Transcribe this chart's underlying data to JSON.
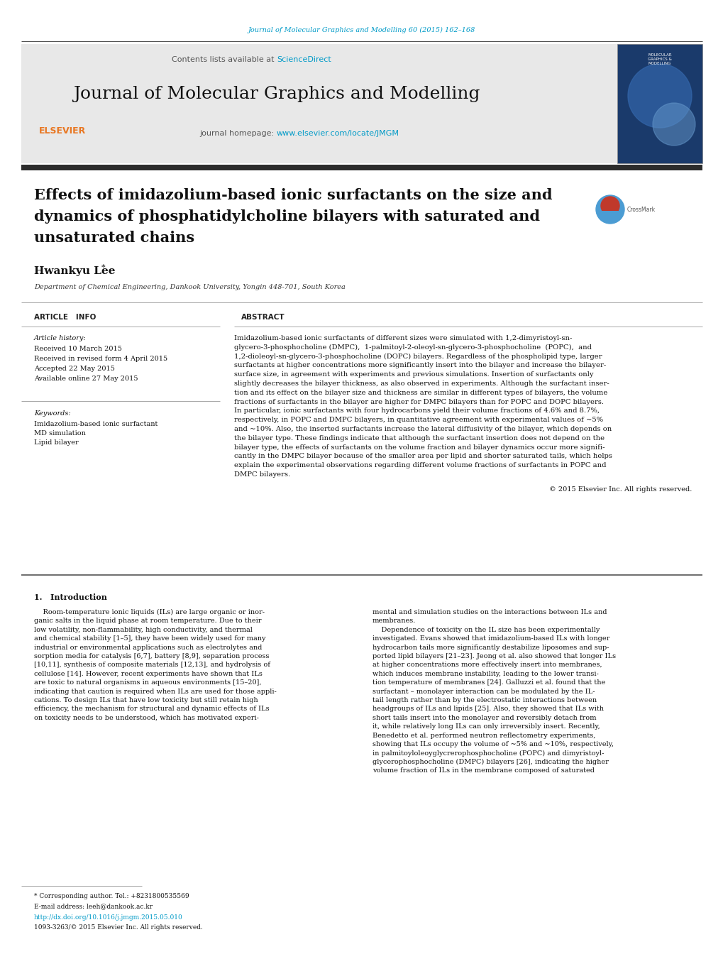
{
  "page_width": 10.2,
  "page_height": 13.51,
  "dpi": 100,
  "bg_color": "#ffffff",
  "header_journal_text": "Journal of Molecular Graphics and Modelling 60 (2015) 162–168",
  "header_journal_color": "#009ac7",
  "journal_name": "Journal of Molecular Graphics and Modelling",
  "contents_text": "Contents lists available at ",
  "sciencedirect_text": "ScienceDirect",
  "sciencedirect_color": "#009ac7",
  "journal_homepage_label": "journal homepage: ",
  "journal_url": "www.elsevier.com/locate/JMGM",
  "journal_url_color": "#009ac7",
  "header_bg_color": "#e8e8e8",
  "dark_bar_color": "#2c2c2c",
  "article_title_line1": "Effects of imidazolium-based ionic surfactants on the size and",
  "article_title_line2": "dynamics of phosphatidylcholine bilayers with saturated and",
  "article_title_line3": "unsaturated chains",
  "author_name": "Hwankyu Lee",
  "affiliation_text": "Department of Chemical Engineering, Dankook University, Yongin 448-701, South Korea",
  "article_info_label": "ARTICLE   INFO",
  "abstract_label": "ABSTRACT",
  "article_history_label": "Article history:",
  "history_entries": [
    "Received 10 March 2015",
    "Received in revised form 4 April 2015",
    "Accepted 22 May 2015",
    "Available online 27 May 2015"
  ],
  "keywords_label": "Keywords:",
  "keywords": [
    "Imidazolium-based ionic surfactant",
    "MD simulation",
    "Lipid bilayer"
  ],
  "abstract_lines": [
    "Imidazolium-based ionic surfactants of different sizes were simulated with 1,2-dimyristoyl-sn-",
    "glycero-3-phosphocholine (DMPC),  1-palmitoyl-2-oleoyl-sn-glycero-3-phosphocholine  (POPC),  and",
    "1,2-dioleoyl-sn-glycero-3-phosphocholine (DOPC) bilayers. Regardless of the phospholipid type, larger",
    "surfactants at higher concentrations more significantly insert into the bilayer and increase the bilayer-",
    "surface size, in agreement with experiments and previous simulations. Insertion of surfactants only",
    "slightly decreases the bilayer thickness, as also observed in experiments. Although the surfactant inser-",
    "tion and its effect on the bilayer size and thickness are similar in different types of bilayers, the volume",
    "fractions of surfactants in the bilayer are higher for DMPC bilayers than for POPC and DOPC bilayers.",
    "In particular, ionic surfactants with four hydrocarbons yield their volume fractions of 4.6% and 8.7%,",
    "respectively, in POPC and DMPC bilayers, in quantitative agreement with experimental values of ~5%",
    "and ~10%. Also, the inserted surfactants increase the lateral diffusivity of the bilayer, which depends on",
    "the bilayer type. These findings indicate that although the surfactant insertion does not depend on the",
    "bilayer type, the effects of surfactants on the volume fraction and bilayer dynamics occur more signifi-",
    "cantly in the DMPC bilayer because of the smaller area per lipid and shorter saturated tails, which helps",
    "explain the experimental observations regarding different volume fractions of surfactants in POPC and",
    "DMPC bilayers."
  ],
  "copyright_text": "© 2015 Elsevier Inc. All rights reserved.",
  "section1_label": "1.   Introduction",
  "intro_col1_lines": [
    "    Room-temperature ionic liquids (ILs) are large organic or inor-",
    "ganic salts in the liquid phase at room temperature. Due to their",
    "low volatility, non-flammability, high conductivity, and thermal",
    "and chemical stability [1–5], they have been widely used for many",
    "industrial or environmental applications such as electrolytes and",
    "sorption media for catalysis [6,7], battery [8,9], separation process",
    "[10,11], synthesis of composite materials [12,13], and hydrolysis of",
    "cellulose [14]. However, recent experiments have shown that ILs",
    "are toxic to natural organisms in aqueous environments [15–20],",
    "indicating that caution is required when ILs are used for those appli-",
    "cations. To design ILs that have low toxicity but still retain high",
    "efficiency, the mechanism for structural and dynamic effects of ILs",
    "on toxicity needs to be understood, which has motivated experi-"
  ],
  "intro_col2_lines": [
    "mental and simulation studies on the interactions between ILs and",
    "membranes.",
    "    Dependence of toxicity on the IL size has been experimentally",
    "investigated. Evans showed that imidazolium-based ILs with longer",
    "hydrocarbon tails more significantly destabilize liposomes and sup-",
    "ported lipid bilayers [21–23]. Jeong et al. also showed that longer ILs",
    "at higher concentrations more effectively insert into membranes,",
    "which induces membrane instability, leading to the lower transi-",
    "tion temperature of membranes [24]. Galluzzi et al. found that the",
    "surfactant – monolayer interaction can be modulated by the IL-",
    "tail length rather than by the electrostatic interactions between",
    "headgroups of ILs and lipids [25]. Also, they showed that ILs with",
    "short tails insert into the monolayer and reversibly detach from",
    "it, while relatively long ILs can only irreversibly insert. Recently,",
    "Benedetto et al. performed neutron reflectometry experiments,",
    "showing that ILs occupy the volume of ~5% and ~10%, respectively,",
    "in palmitoyloleoyglycrerophosphocholine (POPC) and dimyristoyl-",
    "glycerophosphocholine (DMPC) bilayers [26], indicating the higher",
    "volume fraction of ILs in the membrane composed of saturated"
  ],
  "footnote_line1": "* Corresponding author. Tel.: +8231800535569",
  "footnote_line2": "E-mail address: leeh@dankook.ac.kr",
  "footnote_doi": "http://dx.doi.org/10.1016/j.jmgm.2015.05.010",
  "footnote_issn": "1093-3263/© 2015 Elsevier Inc. All rights reserved.",
  "elsevier_color": "#e87722",
  "crossmark_blue": "#4b9cd3",
  "crossmark_red": "#c0392b",
  "cover_bg": "#1a3a6b",
  "cover_text_color": "#ffffff"
}
